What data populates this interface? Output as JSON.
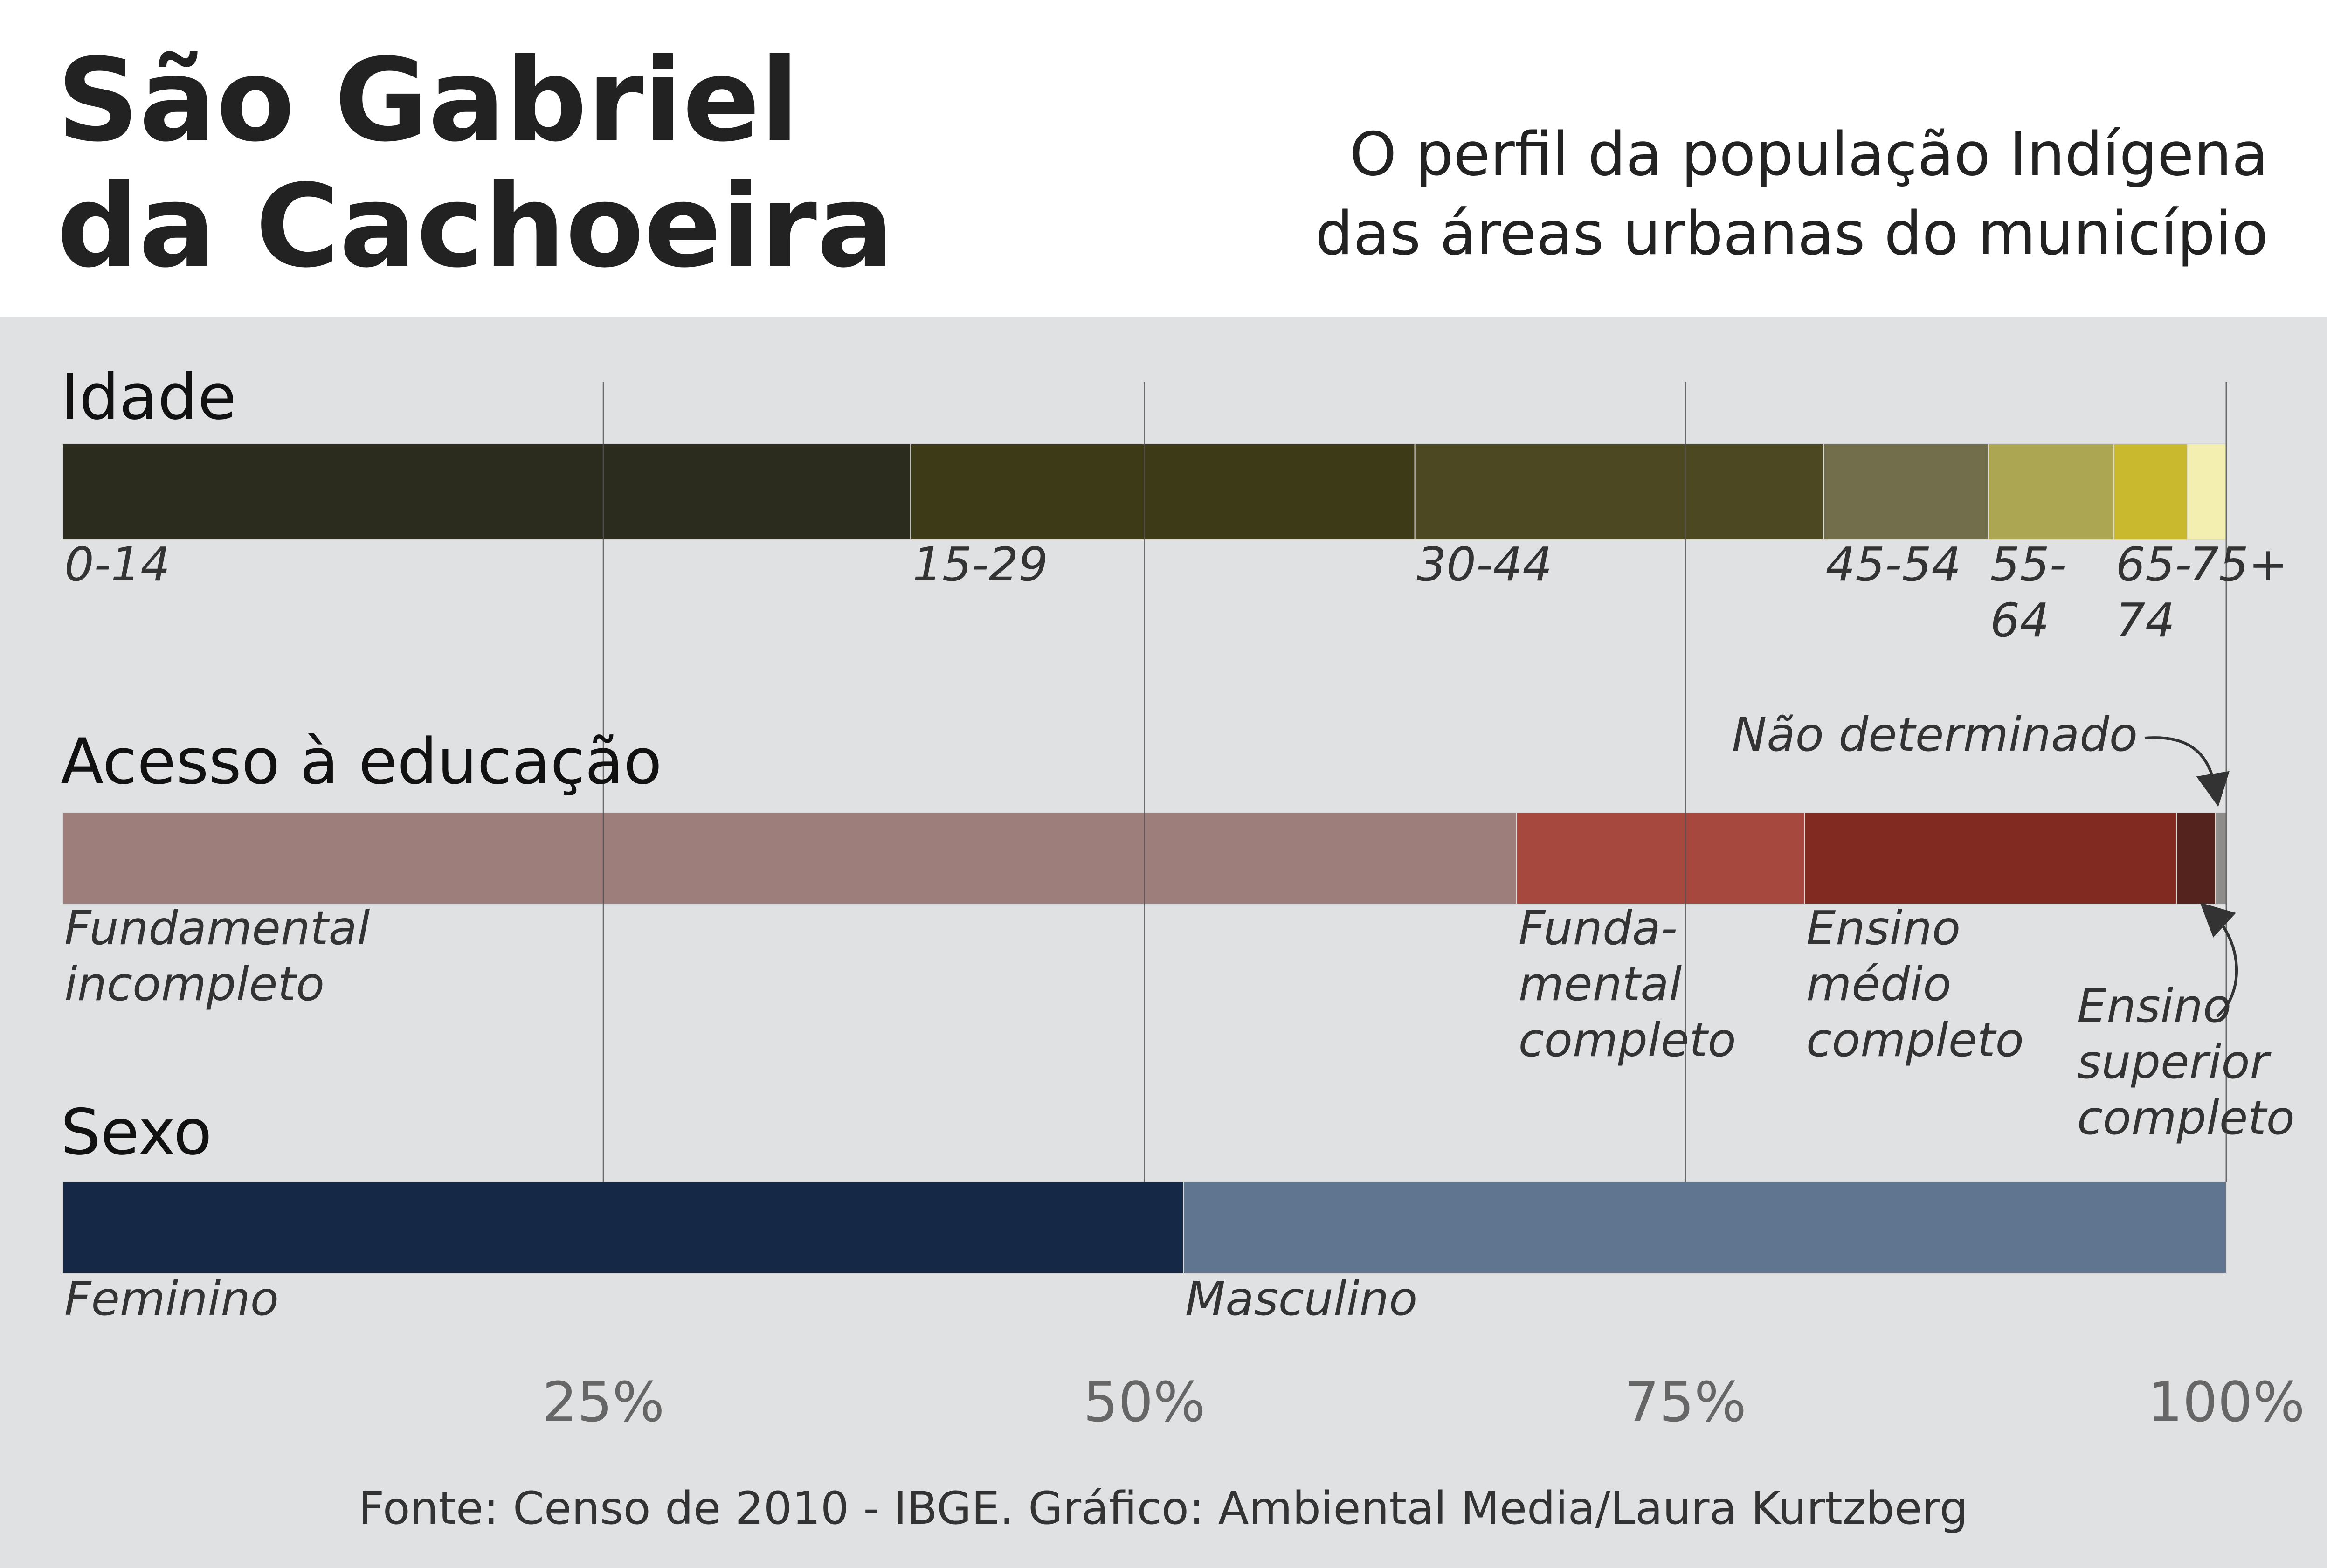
{
  "header": {
    "title_lines": [
      "São Gabriel",
      "da Cachoeira"
    ],
    "subtitle_lines": [
      "O perfil da população Indígena",
      "das áreas urbanas do município"
    ]
  },
  "colors": {
    "panel_bg": "#e0e1e3",
    "gridline": "#555555",
    "text_dark": "#222222"
  },
  "chart_data": {
    "type": "bar",
    "orientation": "horizontal-stacked-100",
    "x_ticks": [
      "25%",
      "50%",
      "75%",
      "100%"
    ],
    "x_tick_values": [
      25,
      50,
      75,
      100
    ],
    "xlim": [
      0,
      100
    ],
    "grid": true,
    "bars": [
      {
        "name": "Idade",
        "segments": [
          {
            "label": "0-14",
            "value": 39.2,
            "color": "#2c2c1e"
          },
          {
            "label": "15-29",
            "value": 23.3,
            "color": "#3d3a18"
          },
          {
            "label": "30-44",
            "value": 18.9,
            "color": "#4b4822"
          },
          {
            "label": "45-54",
            "value": 7.6,
            "color": "#726e4c"
          },
          {
            "label": "55-64",
            "value": 5.8,
            "color": "#aca552"
          },
          {
            "label": "65-74",
            "value": 3.4,
            "color": "#c9b92e"
          },
          {
            "label": "75+",
            "value": 1.8,
            "color": "#f3efb0"
          }
        ]
      },
      {
        "name": "Acesso à educação",
        "segments": [
          {
            "label": "Fundamental incompleto",
            "value": 67.2,
            "color": "#9e7e7b"
          },
          {
            "label": "Fundamental completo",
            "value": 13.3,
            "color": "#a6483e"
          },
          {
            "label": "Ensino médio completo",
            "value": 17.2,
            "color": "#802a21"
          },
          {
            "label": "Ensino superior completo",
            "value": 1.8,
            "color": "#55231e"
          },
          {
            "label": "Não determinado",
            "value": 0.5,
            "color": "#8e8c8b"
          }
        ]
      },
      {
        "name": "Sexo",
        "segments": [
          {
            "label": "Feminino",
            "value": 51.8,
            "color": "#152947"
          },
          {
            "label": "Masculino",
            "value": 48.2,
            "color": "#60758f"
          }
        ]
      }
    ]
  },
  "source": "Fonte: Censo de 2010 - IBGE. Gráfico: Ambiental Media/Laura Kurtzberg"
}
